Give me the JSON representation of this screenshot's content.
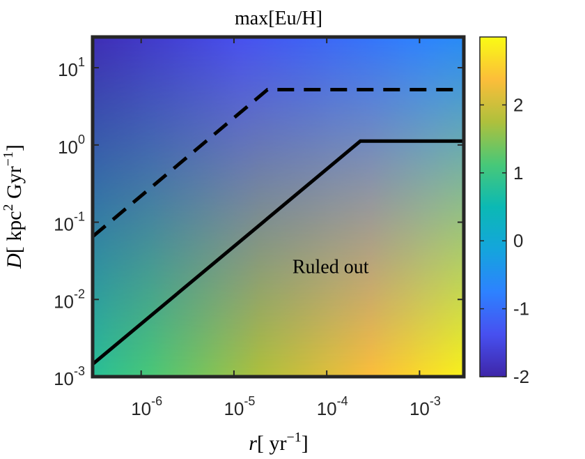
{
  "chart_data": {
    "type": "heatmap",
    "title": "max[Eu/H]",
    "xlabel": {
      "var": "r",
      "open": "[ ",
      "unit": "yr",
      "sup": "−1",
      "close": "]"
    },
    "ylabel": {
      "var": "D",
      "open": "[ ",
      "unit": "kpc",
      "sup1": "2",
      "unit2": " Gyr",
      "sup2": "−1",
      "close": "]"
    },
    "x_scale": "log",
    "y_scale": "log",
    "xlim": [
      3e-07,
      0.003
    ],
    "ylim": [
      0.001,
      25
    ],
    "x_ticks": [
      {
        "value": 1e-06,
        "base": "10",
        "exp": "-6"
      },
      {
        "value": 1e-05,
        "base": "10",
        "exp": "-5"
      },
      {
        "value": 0.0001,
        "base": "10",
        "exp": "-4"
      },
      {
        "value": 0.001,
        "base": "10",
        "exp": "-3"
      }
    ],
    "y_ticks": [
      {
        "value": 0.001,
        "base": "10",
        "exp": "-3"
      },
      {
        "value": 0.01,
        "base": "10",
        "exp": "-2"
      },
      {
        "value": 0.1,
        "base": "10",
        "exp": "-1"
      },
      {
        "value": 1,
        "base": "10",
        "exp": "0"
      },
      {
        "value": 10,
        "base": "10",
        "exp": "1"
      }
    ],
    "colorbar": {
      "colormap": "parula",
      "clim": [
        -2,
        3
      ],
      "ticks": [
        {
          "value": -2,
          "label": "-2"
        },
        {
          "value": -1,
          "label": "-1"
        },
        {
          "value": 0,
          "label": "0"
        },
        {
          "value": 1,
          "label": "1"
        },
        {
          "value": 2,
          "label": "2"
        }
      ]
    },
    "field_corners": {
      "top_left": -1.9,
      "top_right": -0.6,
      "bottom_left": 0.8,
      "bottom_right": 2.9
    },
    "lines": [
      {
        "style": "solid",
        "points": [
          [
            3e-07,
            0.00145
          ],
          [
            0.00023,
            1.12
          ],
          [
            0.003,
            1.12
          ]
        ]
      },
      {
        "style": "dashed",
        "points": [
          [
            3e-07,
            0.065
          ],
          [
            2.3e-05,
            5.2
          ],
          [
            0.003,
            5.2
          ]
        ]
      }
    ],
    "annotations": [
      {
        "text": "Ruled out",
        "x": 0.00011,
        "y": 0.027
      }
    ]
  }
}
